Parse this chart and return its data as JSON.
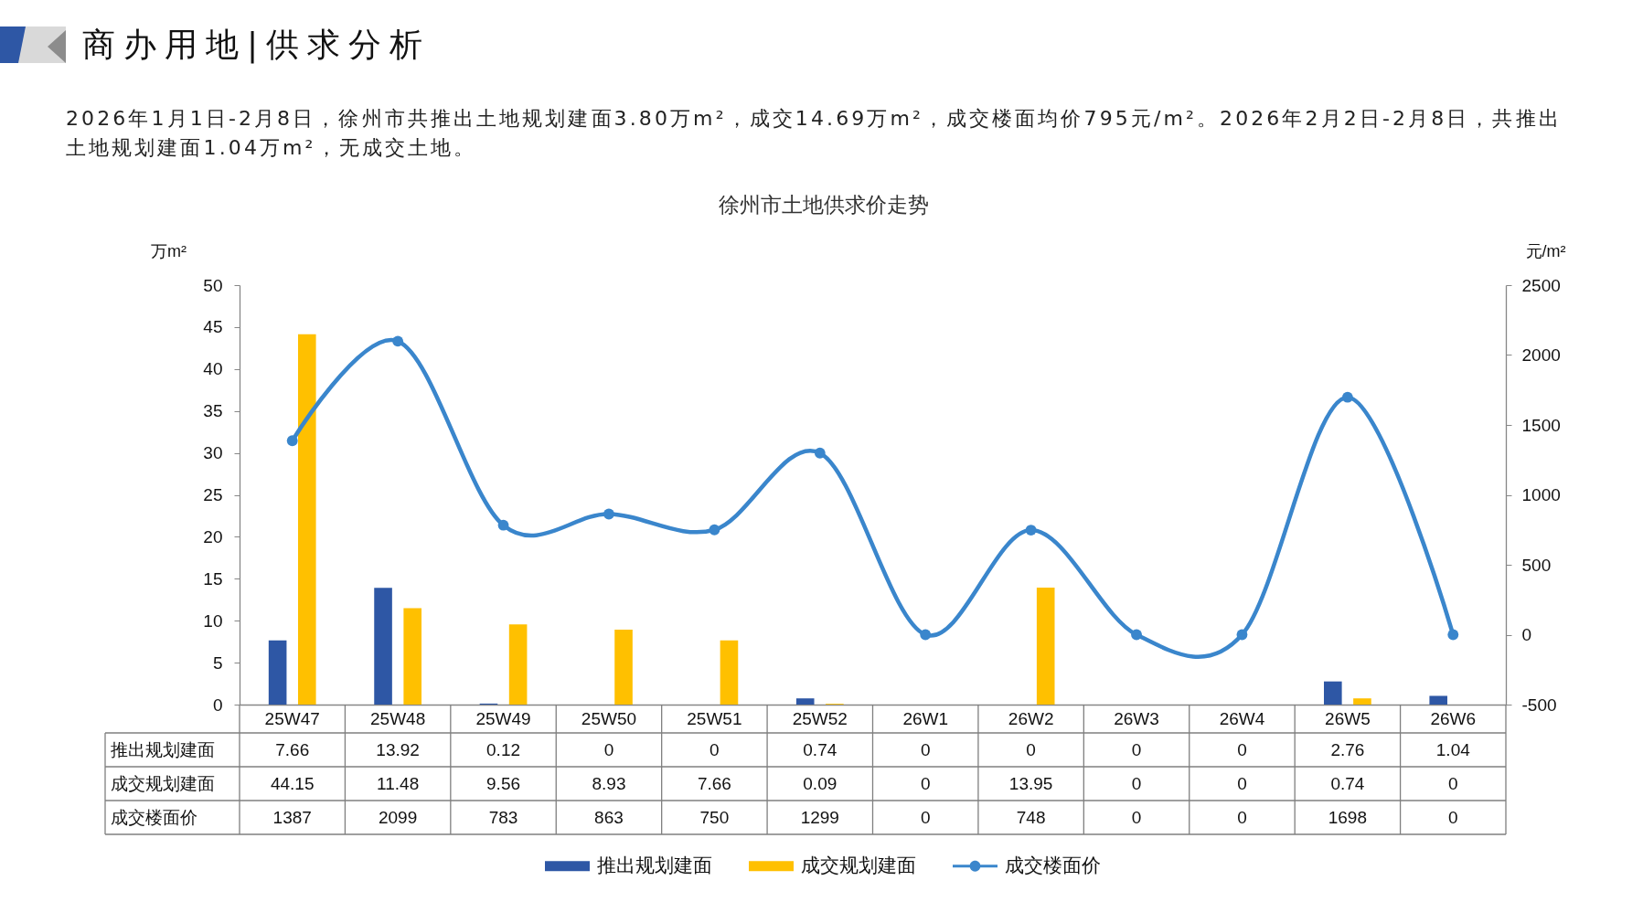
{
  "chart_data": {
    "type": "bar",
    "title": "徐州市土地供求价走势",
    "annotations": [
      "商办用地|供求分析",
      "2026年1月1日-2月8日，徐州市共推出土地规划建面3.80万m²，成交14.69万m²，成交楼面均价795元/m²。2026年2月2日-2月8日，共推出土地规划建面1.04万m²，无成交土地。"
    ],
    "ylabel": "万m²",
    "y2label": "元/m²",
    "categories": [
      "25W47",
      "25W48",
      "25W49",
      "25W50",
      "25W51",
      "25W52",
      "26W1",
      "26W2",
      "26W3",
      "26W4",
      "26W5",
      "26W6"
    ],
    "series": [
      {
        "name": "推出规划建面",
        "color": "#2e57a5",
        "values": [
          7.66,
          13.92,
          0.12,
          0,
          0,
          0.74,
          0,
          0,
          0,
          0,
          2.76,
          1.04
        ]
      },
      {
        "name": "成交规划建面",
        "color": "#ffc000",
        "values": [
          44.15,
          11.48,
          9.56,
          8.93,
          7.66,
          0.09,
          0,
          13.95,
          0,
          0,
          0.74,
          0
        ]
      },
      {
        "name": "成交楼面价",
        "type": "line",
        "axis": "y2",
        "color": "#3a86cc",
        "marker": "circle",
        "values": [
          1387,
          2099,
          783,
          863,
          750,
          1299,
          0,
          748,
          0,
          0,
          1698,
          0
        ]
      }
    ],
    "ylim": [
      0,
      50
    ],
    "yticks": [
      0,
      5,
      10,
      15,
      20,
      25,
      30,
      35,
      40,
      45,
      50
    ],
    "y2lim": [
      -500,
      2500
    ],
    "y2ticks": [
      -500,
      0,
      500,
      1000,
      1500,
      2000,
      2500
    ],
    "data_labels": true,
    "legend": "bottom"
  }
}
